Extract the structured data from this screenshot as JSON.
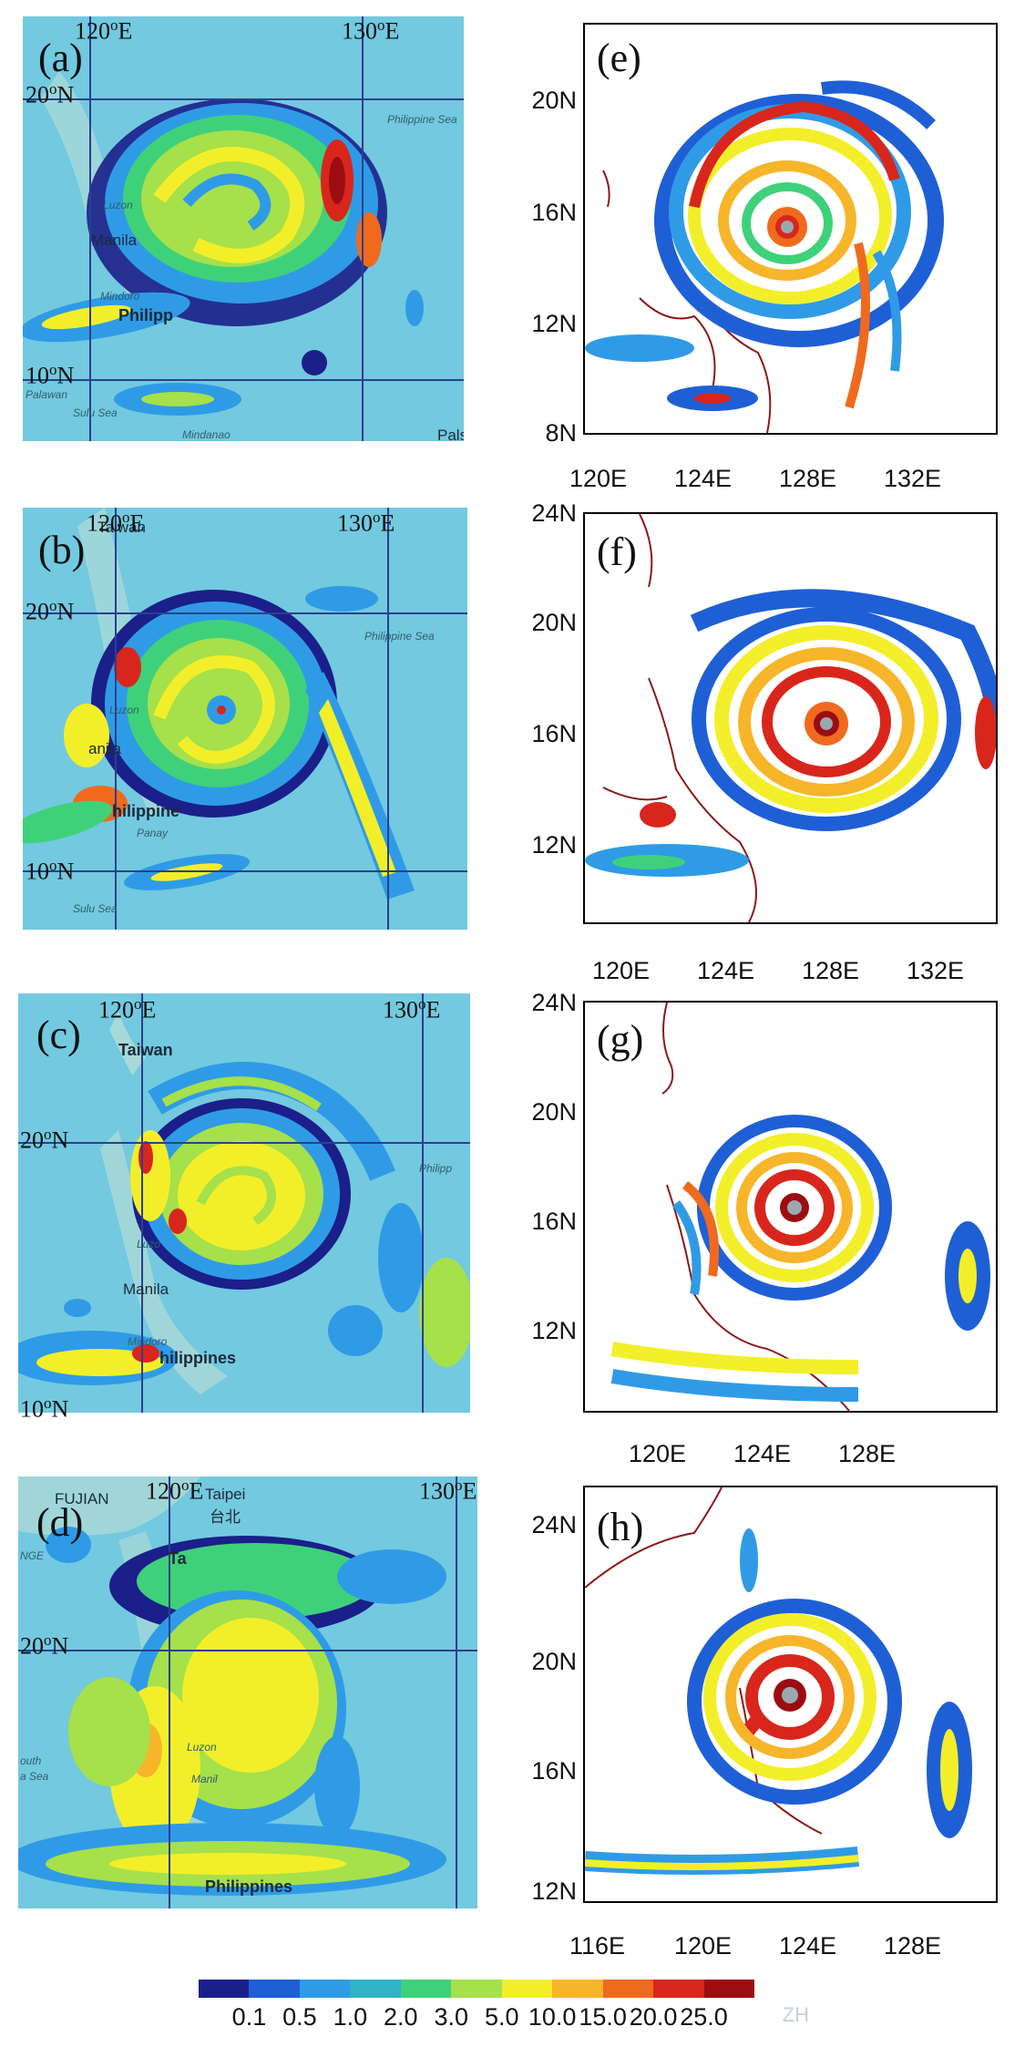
{
  "panels": {
    "a": {
      "label": "(a)",
      "lon_left": "120",
      "lon_right": "130",
      "lat_top": "20",
      "lat_bottom": "10",
      "deg": "o",
      "E": "E",
      "N": "N",
      "places": {
        "luzon": "Luzon",
        "manila": "Manila",
        "mindoro": "Mindoro",
        "philippines": "Philipp",
        "palawan": "Palawan",
        "sulu": "Sulu Sea",
        "mindanao": "Mindanao",
        "philsea": "Philippine Sea",
        "pals": "Pals"
      }
    },
    "b": {
      "label": "(b)",
      "lon_left": "120",
      "lon_right": "130",
      "lat_top": "20",
      "lat_bottom": "10",
      "deg": "o",
      "E": "E",
      "N": "N",
      "places": {
        "taiwan": "Taiwan",
        "luzon": "Luzon",
        "manila": "anila",
        "philippines": "hilippine",
        "panay": "Panay",
        "sulu": "Sulu Sea",
        "philsea": "Philippine Sea"
      }
    },
    "c": {
      "label": "(c)",
      "lon_left": "120",
      "lon_right": "130",
      "lat_top": "20",
      "lat_bottom": "10",
      "deg": "o",
      "E": "E",
      "N": "N",
      "places": {
        "taiwan": "Taiwan",
        "luzon": "Luzo",
        "manila": "Manila",
        "mindoro": "Mindoro",
        "philippines": "hilippines",
        "philsea": "Philipp"
      }
    },
    "d": {
      "label": "(d)",
      "lon_left": "120",
      "lon_right": "130",
      "lat_top": "20",
      "deg": "o",
      "E": "E",
      "N": "N",
      "places": {
        "fujian": "FUJIAN",
        "taipei": "Taipei",
        "taipei_cn": "台北",
        "taiwan": "Ta",
        "nge": "NGE",
        "south": "outh",
        "sea": "a Sea",
        "philippines": "Philippines",
        "manila": "Manil",
        "zhn": "Luzon"
      }
    },
    "e": {
      "label": "(e)",
      "yticks": [
        "20N",
        "16N",
        "12N",
        "8N"
      ],
      "xticks": [
        "120E",
        "124E",
        "128E",
        "132E"
      ]
    },
    "f": {
      "label": "(f)",
      "yticks": [
        "24N",
        "20N",
        "16N",
        "12N"
      ],
      "xticks": [
        "120E",
        "124E",
        "128E",
        "132E"
      ]
    },
    "g": {
      "label": "(g)",
      "yticks": [
        "24N",
        "20N",
        "16N",
        "12N"
      ],
      "xticks": [
        "120E",
        "124E",
        "128E"
      ]
    },
    "h": {
      "label": "(h)",
      "yticks": [
        "24N",
        "20N",
        "16N",
        "12N"
      ],
      "xticks": [
        "116E",
        "120E",
        "124E",
        "128E"
      ]
    }
  },
  "colorbar": {
    "labels": [
      "0.1",
      "0.5",
      "1.0",
      "2.0",
      "3.0",
      "5.0",
      "10.0",
      "15.0",
      "20.0",
      "25.0"
    ],
    "colors": [
      "#1b1f8a",
      "#1f5fd6",
      "#2f9be6",
      "#2db4c6",
      "#3fd17a",
      "#a6e04a",
      "#f2ef2a",
      "#f7b52a",
      "#f06a1e",
      "#d8261c",
      "#9c0d12"
    ],
    "watermark": "ZH"
  }
}
